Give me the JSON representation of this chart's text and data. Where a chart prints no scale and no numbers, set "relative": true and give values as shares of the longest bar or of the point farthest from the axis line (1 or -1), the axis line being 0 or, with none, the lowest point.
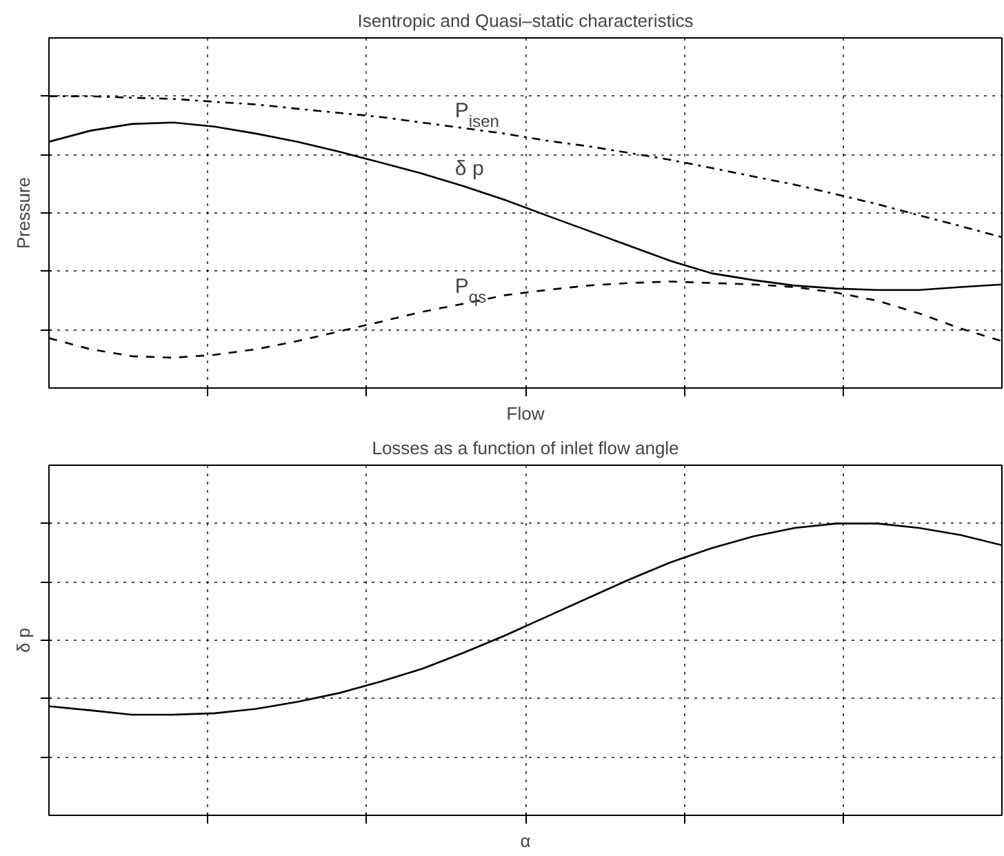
{
  "chart_data": [
    {
      "type": "line",
      "title": "Isentropic and Quasi–static characteristics",
      "xlabel": "Flow",
      "ylabel": "Pressure",
      "relative": true,
      "grid": true,
      "categories": [
        null,
        null,
        null,
        null,
        null,
        null,
        null,
        null,
        null,
        null,
        null,
        null,
        null,
        null,
        null,
        null,
        null,
        null,
        null,
        null,
        null,
        null,
        null,
        null
      ],
      "series": [
        {
          "name": "P$_{isen}$",
          "color": "#000000",
          "line_style": "dashdot",
          "values": [
            1,
            1,
            0.995,
            0.991,
            0.981,
            0.972,
            0.957,
            0.943,
            0.929,
            0.91,
            0.891,
            0.872,
            0.848,
            0.829,
            0.806,
            0.782,
            0.754,
            0.725,
            0.697,
            0.664,
            0.63,
            0.592,
            0.555,
            0.517
          ]
        },
        {
          "name": "δ p",
          "color": "#000000",
          "line_style": "solid",
          "values": [
            0.844,
            0.882,
            0.905,
            0.91,
            0.896,
            0.872,
            0.844,
            0.81,
            0.773,
            0.735,
            0.692,
            0.645,
            0.592,
            0.54,
            0.488,
            0.436,
            0.393,
            0.37,
            0.351,
            0.341,
            0.336,
            0.336,
            0.346,
            0.355
          ]
        },
        {
          "name": "P$_{qs}$",
          "color": "#000000",
          "line_style": "dashed",
          "values": [
            0.171,
            0.133,
            0.109,
            0.104,
            0.114,
            0.133,
            0.161,
            0.194,
            0.227,
            0.261,
            0.289,
            0.318,
            0.336,
            0.351,
            0.36,
            0.365,
            0.36,
            0.355,
            0.346,
            0.327,
            0.299,
            0.256,
            0.204,
            0.161
          ]
        }
      ]
    },
    {
      "type": "line",
      "title": "Losses as a function of inlet flow angle",
      "xlabel": "α",
      "ylabel": "δ p",
      "relative": true,
      "grid": true,
      "categories": [
        null,
        null,
        null,
        null,
        null,
        null,
        null,
        null,
        null,
        null,
        null,
        null,
        null,
        null,
        null,
        null,
        null,
        null,
        null,
        null,
        null,
        null,
        null,
        null
      ],
      "series": [
        {
          "color": "#000000",
          "line_style": "solid",
          "values": [
            0.374,
            0.36,
            0.345,
            0.345,
            0.35,
            0.365,
            0.389,
            0.419,
            0.458,
            0.502,
            0.557,
            0.616,
            0.68,
            0.744,
            0.808,
            0.867,
            0.916,
            0.956,
            0.985,
            1,
            1,
            0.985,
            0.961,
            0.926
          ]
        }
      ]
    }
  ]
}
